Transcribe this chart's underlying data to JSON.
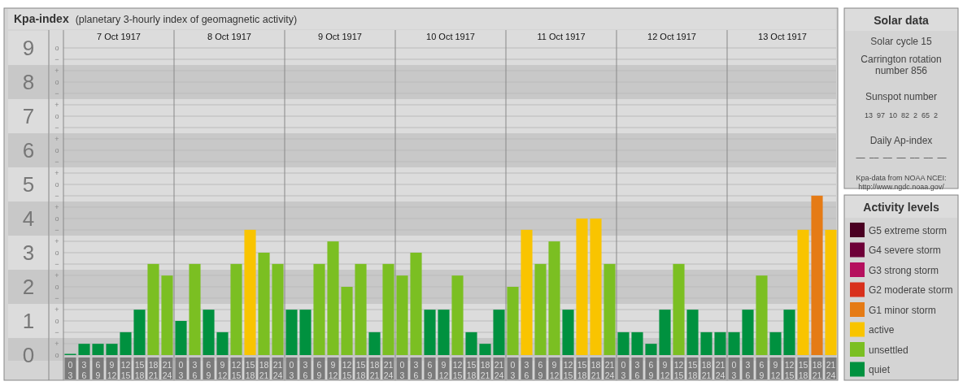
{
  "chart_data": [
    {
      "type": "bar",
      "title": "Kpa-index",
      "subtitle": "(planetary 3-hourly index of geomagnetic activity)",
      "categories": [
        "0 3",
        "3 6",
        "6 9",
        "9 12",
        "12 15",
        "15 18",
        "18 21",
        "21 24",
        "0 3",
        "3 6",
        "6 9",
        "9 12",
        "12 15",
        "15 18",
        "18 21",
        "21 24",
        "0 3",
        "3 6",
        "6 9",
        "9 12",
        "12 15",
        "15 18",
        "18 21",
        "21 24",
        "0 3",
        "3 6",
        "6 9",
        "9 12",
        "12 15",
        "15 18",
        "18 21",
        "21 24",
        "0 3",
        "3 6",
        "6 9",
        "9 12",
        "12 15",
        "15 18",
        "18 21",
        "21 24",
        "0 3",
        "3 6",
        "6 9",
        "9 12",
        "12 15",
        "15 18",
        "18 21",
        "21 24",
        "0 3",
        "3 6",
        "6 9",
        "9 12",
        "12 15",
        "15 18",
        "18 21",
        "21 24"
      ],
      "annotations": [
        "7 Oct 1917",
        "8 Oct 1917",
        "9 Oct 1917",
        "10 Oct 1917",
        "11 Oct 1917",
        "12 Oct 1917",
        "13 Oct 1917",
        "o",
        "+",
        "−",
        "o",
        "+",
        "−",
        "o",
        "+",
        "−",
        "o",
        "+",
        "−",
        "o",
        "+",
        "−",
        "o",
        "+",
        "−",
        "o",
        "+",
        "−",
        "o",
        "+",
        "−",
        "o",
        "+",
        "−",
        "o"
      ],
      "stacked": true,
      "legend": "right",
      "legend_title": "Activity levels",
      "grid": true,
      "ylim": [
        0,
        9
      ],
      "yticks": [
        0,
        1,
        2,
        3,
        4,
        5,
        6,
        7,
        8,
        9
      ],
      "series": [
        {
          "name": "quiet",
          "color": "#00913f",
          "values": [
            0,
            0.33,
            0.33,
            0.33,
            0.67,
            1.33,
            null,
            null,
            1,
            null,
            1.33,
            0.67,
            null,
            null,
            null,
            null,
            1.33,
            1.33,
            null,
            null,
            null,
            null,
            0.67,
            null,
            null,
            null,
            1.33,
            1.33,
            null,
            0.67,
            0.33,
            1.33,
            null,
            null,
            null,
            null,
            1.33,
            null,
            null,
            null,
            0.67,
            0.67,
            0.33,
            1.33,
            null,
            1.33,
            0.67,
            0.67,
            0.67,
            1.33,
            null,
            0.67,
            1.33,
            null,
            null,
            null
          ]
        },
        {
          "name": "unsettled",
          "color": "#7bbf22",
          "values": [
            null,
            null,
            null,
            null,
            null,
            null,
            2.67,
            2.33,
            null,
            2.67,
            null,
            null,
            2.67,
            null,
            3,
            2.67,
            null,
            null,
            2.67,
            3.33,
            2,
            2.67,
            null,
            2.67,
            2.33,
            3,
            null,
            null,
            2.33,
            null,
            null,
            null,
            2,
            null,
            2.67,
            3.33,
            null,
            null,
            null,
            2.67,
            null,
            null,
            null,
            null,
            2.67,
            null,
            null,
            null,
            null,
            null,
            2.33,
            null,
            null,
            null,
            null,
            null
          ]
        },
        {
          "name": "active",
          "color": "#f9c400",
          "values": [
            null,
            null,
            null,
            null,
            null,
            null,
            null,
            null,
            null,
            null,
            null,
            null,
            null,
            3.67,
            null,
            null,
            null,
            null,
            null,
            null,
            null,
            null,
            null,
            null,
            null,
            null,
            null,
            null,
            null,
            null,
            null,
            null,
            null,
            3.67,
            null,
            null,
            null,
            4,
            4,
            null,
            null,
            null,
            null,
            null,
            null,
            null,
            null,
            null,
            null,
            null,
            null,
            null,
            null,
            3.67,
            null,
            3.67
          ]
        },
        {
          "name": "G1 minor storm",
          "color": "#e57b15",
          "values": [
            null,
            null,
            null,
            null,
            null,
            null,
            null,
            null,
            null,
            null,
            null,
            null,
            null,
            null,
            null,
            null,
            null,
            null,
            null,
            null,
            null,
            null,
            null,
            null,
            null,
            null,
            null,
            null,
            null,
            null,
            null,
            null,
            null,
            null,
            null,
            null,
            null,
            null,
            null,
            null,
            null,
            null,
            null,
            null,
            null,
            null,
            null,
            null,
            null,
            null,
            null,
            null,
            null,
            null,
            4.67,
            null
          ]
        },
        {
          "name": "G2 moderate storm",
          "color": "#d8301c",
          "values": [
            null,
            null,
            null,
            null,
            null,
            null,
            null,
            null,
            null,
            null,
            null,
            null,
            null,
            null,
            null,
            null,
            null,
            null,
            null,
            null,
            null,
            null,
            null,
            null,
            null,
            null,
            null,
            null,
            null,
            null,
            null,
            null,
            null,
            null,
            null,
            null,
            null,
            null,
            null,
            null,
            null,
            null,
            null,
            null,
            null,
            null,
            null,
            null,
            null,
            null,
            null,
            null,
            null,
            null,
            null,
            null
          ]
        },
        {
          "name": "G3 strong storm",
          "color": "#b5105e",
          "values": [
            null,
            null,
            null,
            null,
            null,
            null,
            null,
            null,
            null,
            null,
            null,
            null,
            null,
            null,
            null,
            null,
            null,
            null,
            null,
            null,
            null,
            null,
            null,
            null,
            null,
            null,
            null,
            null,
            null,
            null,
            null,
            null,
            null,
            null,
            null,
            null,
            null,
            null,
            null,
            null,
            null,
            null,
            null,
            null,
            null,
            null,
            null,
            null,
            null,
            null,
            null,
            null,
            null,
            null,
            null,
            null
          ]
        },
        {
          "name": "G4 severe storm",
          "color": "#6e0038",
          "values": [
            null,
            null,
            null,
            null,
            null,
            null,
            null,
            null,
            null,
            null,
            null,
            null,
            null,
            null,
            null,
            null,
            null,
            null,
            null,
            null,
            null,
            null,
            null,
            null,
            null,
            null,
            null,
            null,
            null,
            null,
            null,
            null,
            null,
            null,
            null,
            null,
            null,
            null,
            null,
            null,
            null,
            null,
            null,
            null,
            null,
            null,
            null,
            null,
            null,
            null,
            null,
            null,
            null,
            null,
            null,
            null
          ]
        },
        {
          "name": "G5 extreme storm",
          "color": "#4a0022",
          "values": [
            null,
            null,
            null,
            null,
            null,
            null,
            null,
            null,
            null,
            null,
            null,
            null,
            null,
            null,
            null,
            null,
            null,
            null,
            null,
            null,
            null,
            null,
            null,
            null,
            null,
            null,
            null,
            null,
            null,
            null,
            null,
            null,
            null,
            null,
            null,
            null,
            null,
            null,
            null,
            null,
            null,
            null,
            null,
            null,
            null,
            null,
            null,
            null,
            null,
            null,
            null,
            null,
            null,
            null,
            null,
            null
          ]
        }
      ]
    },
    {
      "type": "other",
      "title": "Solar data",
      "annotations": [
        "Solar cycle 15",
        "Carrington rotation\nnumber 856",
        "Sunspot number",
        "13  97  10  82  2  65  2",
        "Daily Ap-index",
        "––  ––  ––  ––  ––  ––  ––",
        "Kpa-data from NOAA NCEI:\nhttp://www.ngdc.noaa.gov/"
      ]
    }
  ]
}
